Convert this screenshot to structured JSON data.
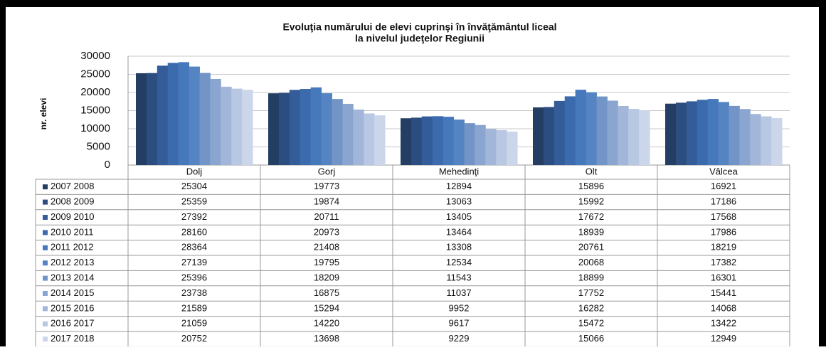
{
  "chart_data": {
    "type": "bar",
    "title": [
      "Evoluţia numărului de elevi cuprinşi în învăţământul liceal",
      "la nivelul judeţelor Regiunii"
    ],
    "y_label": "nr. elevi",
    "categories": [
      "Dolj",
      "Gorj",
      "Mehedinţi",
      "Olt",
      "Vâlcea"
    ],
    "ylim": [
      0,
      30000
    ],
    "yticks": [
      0,
      5000,
      10000,
      15000,
      20000,
      25000,
      30000
    ],
    "grid": true,
    "series": [
      {
        "name": "2007 2008",
        "color": "#233d63",
        "values": [
          25304,
          19773,
          12894,
          15896,
          16921
        ]
      },
      {
        "name": "2008 2009",
        "color": "#2c4d7f",
        "values": [
          25359,
          19874,
          13063,
          15992,
          17186
        ]
      },
      {
        "name": "2009 2010",
        "color": "#335c98",
        "values": [
          27392,
          20711,
          13405,
          17672,
          17568
        ]
      },
      {
        "name": "2010 2011",
        "color": "#3b6bad",
        "values": [
          28160,
          20973,
          13464,
          18939,
          17986
        ]
      },
      {
        "name": "2011 2012",
        "color": "#4678bc",
        "values": [
          28364,
          21408,
          13308,
          20761,
          18219
        ]
      },
      {
        "name": "2012 2013",
        "color": "#5584c2",
        "values": [
          27139,
          19795,
          12534,
          20068,
          17382
        ]
      },
      {
        "name": "2013 2014",
        "color": "#7394c6",
        "values": [
          25396,
          18209,
          11543,
          18899,
          16301
        ]
      },
      {
        "name": "2014 2015",
        "color": "#8aa5cf",
        "values": [
          23738,
          16875,
          11037,
          17752,
          15441
        ]
      },
      {
        "name": "2015 2016",
        "color": "#a2b6d9",
        "values": [
          21589,
          15294,
          9952,
          16282,
          14068
        ]
      },
      {
        "name": "2016 2017",
        "color": "#b8c7e2",
        "values": [
          21059,
          14220,
          9617,
          15472,
          13422
        ]
      },
      {
        "name": "2017 2018",
        "color": "#cbd6ea",
        "values": [
          20752,
          13698,
          9229,
          15066,
          12949
        ]
      }
    ]
  }
}
